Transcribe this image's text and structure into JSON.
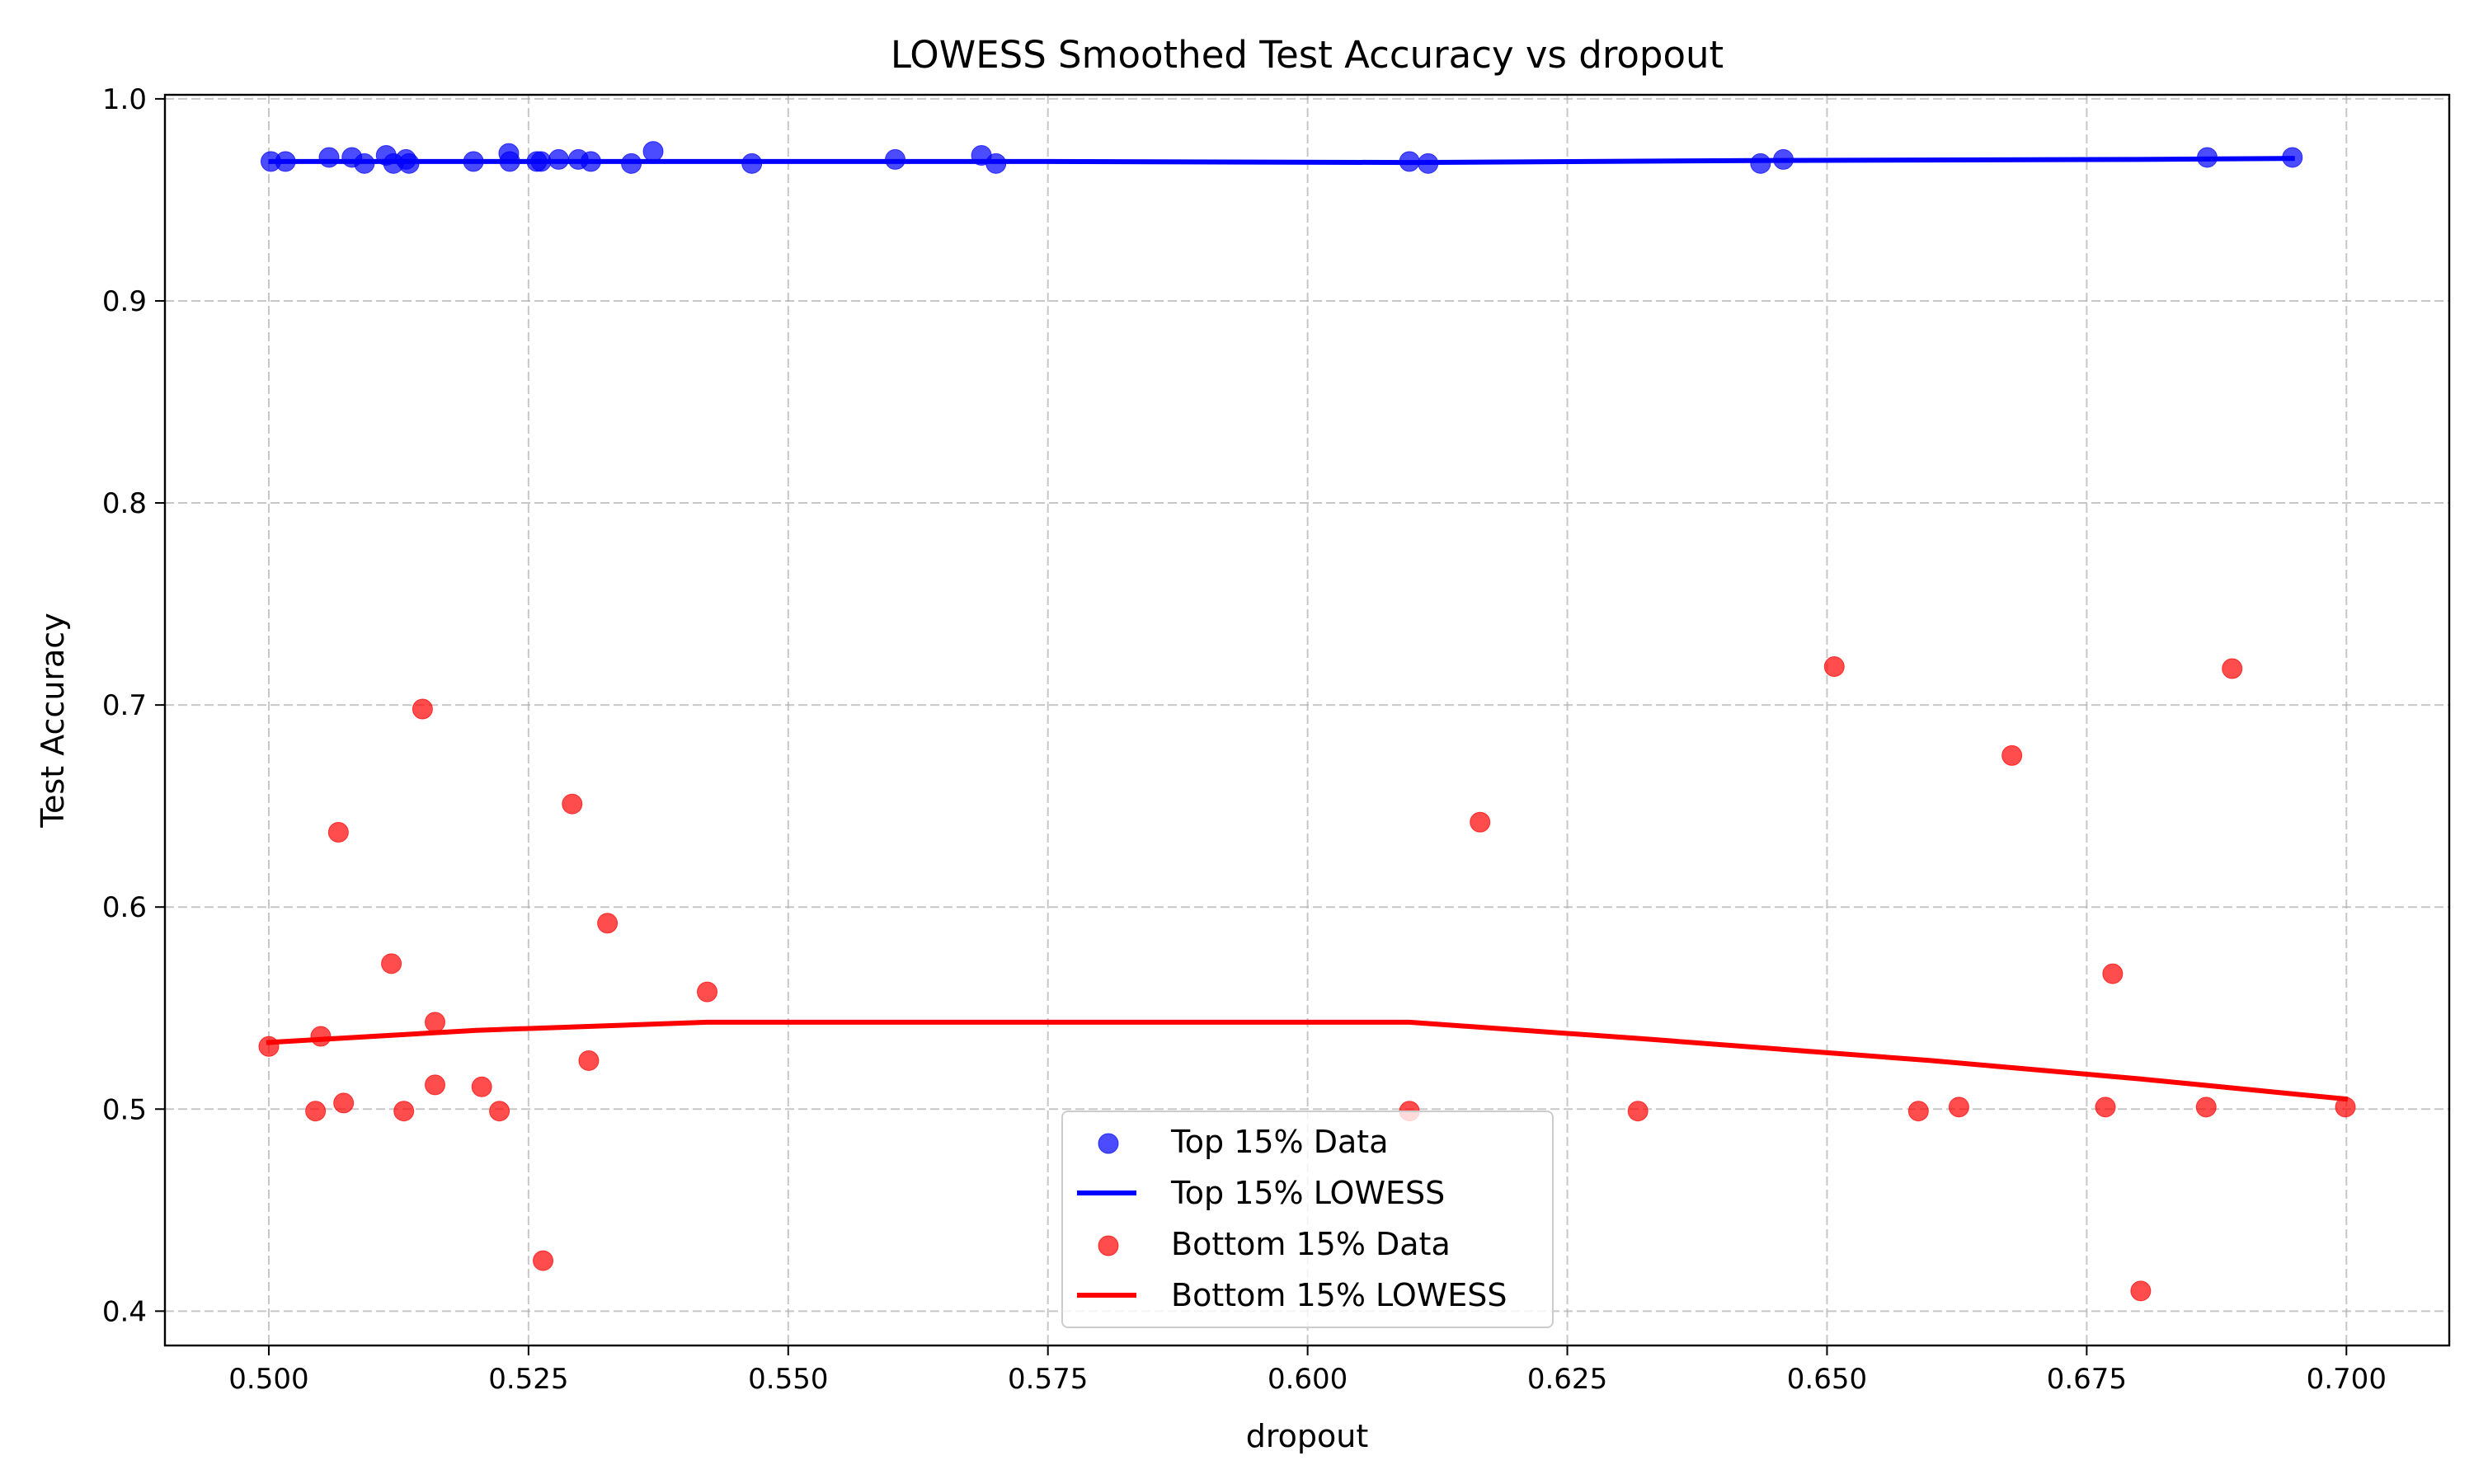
{
  "chart_data": {
    "type": "scatter",
    "title": "LOWESS Smoothed Test Accuracy vs dropout",
    "xlabel": "dropout",
    "ylabel": "Test Accuracy",
    "xlim": [
      0.49,
      0.7099
    ],
    "ylim": [
      0.383,
      1.002
    ],
    "xticks": [
      0.5,
      0.525,
      0.55,
      0.575,
      0.6,
      0.625,
      0.65,
      0.675,
      0.7
    ],
    "xtick_labels": [
      "0.500",
      "0.525",
      "0.550",
      "0.575",
      "0.600",
      "0.625",
      "0.650",
      "0.675",
      "0.700"
    ],
    "yticks": [
      0.4,
      0.5,
      0.6,
      0.7,
      0.8,
      0.9,
      1.0
    ],
    "ytick_labels": [
      "0.4",
      "0.5",
      "0.6",
      "0.7",
      "0.8",
      "0.9",
      "1.0"
    ],
    "grid": true,
    "legend_position": "bottom-center",
    "series": [
      {
        "name": "Top 15% Data",
        "kind": "scatter",
        "color": "#0000ff",
        "points": [
          [
            0.5002,
            0.969
          ],
          [
            0.5016,
            0.969
          ],
          [
            0.5058,
            0.971
          ],
          [
            0.508,
            0.971
          ],
          [
            0.5092,
            0.968
          ],
          [
            0.5113,
            0.972
          ],
          [
            0.512,
            0.968
          ],
          [
            0.5132,
            0.97
          ],
          [
            0.5135,
            0.968
          ],
          [
            0.5197,
            0.969
          ],
          [
            0.5231,
            0.973
          ],
          [
            0.5232,
            0.969
          ],
          [
            0.5258,
            0.969
          ],
          [
            0.5262,
            0.969
          ],
          [
            0.5279,
            0.97
          ],
          [
            0.5298,
            0.97
          ],
          [
            0.531,
            0.969
          ],
          [
            0.5349,
            0.968
          ],
          [
            0.537,
            0.974
          ],
          [
            0.5465,
            0.968
          ],
          [
            0.5603,
            0.97
          ],
          [
            0.5686,
            0.972
          ],
          [
            0.57,
            0.968
          ],
          [
            0.6098,
            0.969
          ],
          [
            0.6116,
            0.968
          ],
          [
            0.6436,
            0.968
          ],
          [
            0.6458,
            0.97
          ],
          [
            0.6866,
            0.971
          ],
          [
            0.6948,
            0.971
          ]
        ]
      },
      {
        "name": "Top 15% LOWESS",
        "kind": "line",
        "color": "#0000ff",
        "points": [
          [
            0.5002,
            0.969
          ],
          [
            0.52,
            0.969
          ],
          [
            0.55,
            0.969
          ],
          [
            0.575,
            0.969
          ],
          [
            0.61,
            0.9685
          ],
          [
            0.645,
            0.9695
          ],
          [
            0.68,
            0.97
          ],
          [
            0.6948,
            0.9705
          ]
        ]
      },
      {
        "name": "Bottom 15% Data",
        "kind": "scatter",
        "color": "#ff0000",
        "points": [
          [
            0.5,
            0.531
          ],
          [
            0.5045,
            0.499
          ],
          [
            0.505,
            0.536
          ],
          [
            0.5067,
            0.637
          ],
          [
            0.5072,
            0.503
          ],
          [
            0.5118,
            0.572
          ],
          [
            0.513,
            0.499
          ],
          [
            0.5148,
            0.698
          ],
          [
            0.516,
            0.543
          ],
          [
            0.516,
            0.512
          ],
          [
            0.5205,
            0.511
          ],
          [
            0.5222,
            0.499
          ],
          [
            0.5264,
            0.425
          ],
          [
            0.5292,
            0.651
          ],
          [
            0.5308,
            0.524
          ],
          [
            0.5326,
            0.592
          ],
          [
            0.5422,
            0.558
          ],
          [
            0.6098,
            0.499
          ],
          [
            0.6166,
            0.642
          ],
          [
            0.6318,
            0.499
          ],
          [
            0.6507,
            0.719
          ],
          [
            0.6588,
            0.499
          ],
          [
            0.6627,
            0.501
          ],
          [
            0.6678,
            0.675
          ],
          [
            0.6768,
            0.501
          ],
          [
            0.6775,
            0.567
          ],
          [
            0.6802,
            0.41
          ],
          [
            0.6865,
            0.501
          ],
          [
            0.689,
            0.718
          ],
          [
            0.6999,
            0.501
          ]
        ]
      },
      {
        "name": "Bottom 15% LOWESS",
        "kind": "line",
        "color": "#ff0000",
        "points": [
          [
            0.5,
            0.533
          ],
          [
            0.52,
            0.539
          ],
          [
            0.5422,
            0.543
          ],
          [
            0.6098,
            0.543
          ],
          [
            0.6318,
            0.535
          ],
          [
            0.66,
            0.524
          ],
          [
            0.68,
            0.515
          ],
          [
            0.6999,
            0.505
          ]
        ]
      }
    ]
  }
}
